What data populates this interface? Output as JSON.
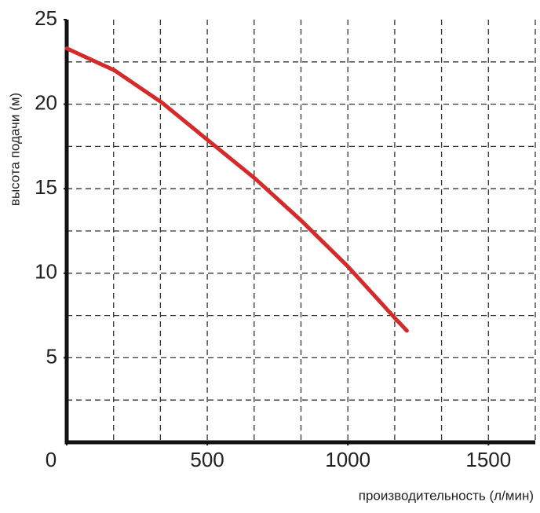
{
  "chart_data": {
    "type": "line",
    "x_label": "производительность (л/мин)",
    "y_label": "высота подачи (м)",
    "x": [
      0,
      170,
      338,
      500,
      670,
      835,
      1000,
      1170,
      1210
    ],
    "series": [
      {
        "color": "#d42a2a",
        "values": [
          23.3,
          22.0,
          20.1,
          17.9,
          15.6,
          13.1,
          10.4,
          7.3,
          6.6
        ]
      }
    ],
    "xlim": [
      0,
      1666.7
    ],
    "ylim": [
      0,
      25
    ],
    "xticks": [
      0,
      500,
      1000,
      1500
    ],
    "yticks": [
      5,
      10,
      15,
      20,
      25
    ],
    "xgrid": [
      166.7,
      333.3,
      500,
      666.7,
      833.3,
      1000,
      1166.7,
      1333.3,
      1500,
      1666.7
    ],
    "ygrid": [
      2.5,
      5,
      7.5,
      10,
      12.5,
      15,
      17.5,
      20,
      22.5
    ],
    "grid": true
  }
}
